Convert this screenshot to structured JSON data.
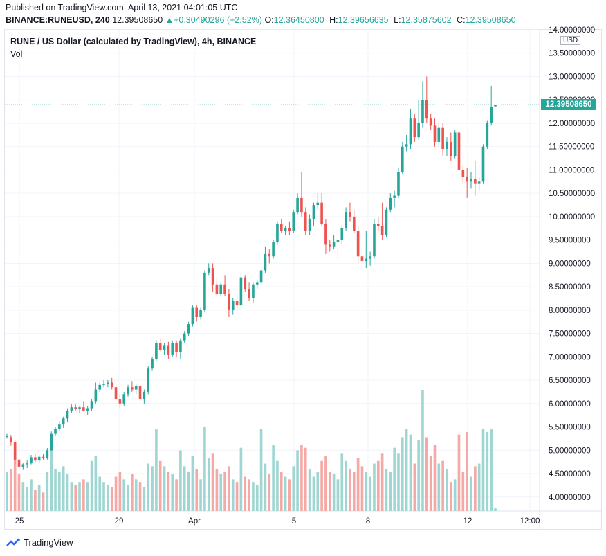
{
  "header": {
    "published": "Published on TradingView.com, April 13, 2021 04:01:05 UTC",
    "symbol": "BINANCE:RUNEUSD, 240",
    "last": "12.39508650",
    "change": "▲+0.30490296 (+2.52%)",
    "o_label": "O:",
    "o_value": "12.36450800",
    "h_label": "H:",
    "h_value": "12.39656635",
    "l_label": "L:",
    "l_value": "12.35875602",
    "c_label": "C:",
    "c_value": "12.39508650"
  },
  "legend": {
    "title": "RUNE / US Dollar (calculated by TradingView), 4h, BINANCE",
    "vol_label": "Vol"
  },
  "axis": {
    "currency": "USD",
    "last_price_tag": "12.39508650"
  },
  "footer": {
    "brand": "TradingView"
  },
  "colors": {
    "up": "#26a69a",
    "down": "#ef5350",
    "up_vol": "#9fd6d1",
    "down_vol": "#f5a9a6",
    "grid": "#f0f3fa"
  },
  "chart_data": {
    "type": "candlestick",
    "ylim": [
      3.7,
      14.0
    ],
    "y_ticks": [
      "4.00000000",
      "4.50000000",
      "5.00000000",
      "5.50000000",
      "6.00000000",
      "6.50000000",
      "7.00000000",
      "7.50000000",
      "8.00000000",
      "8.50000000",
      "9.00000000",
      "9.50000000",
      "10.00000000",
      "10.50000000",
      "11.00000000",
      "11.50000000",
      "12.00000000",
      "12.50000000",
      "13.00000000",
      "13.50000000",
      "14.00000000"
    ],
    "x_labels": [
      "25",
      "29",
      "Apr",
      "5",
      "8",
      "12",
      "12:00"
    ],
    "last_price": 12.3950865,
    "candles": [
      {
        "o": 5.3,
        "h": 5.35,
        "l": 5.25,
        "c": 5.3,
        "v": 0.3
      },
      {
        "o": 5.28,
        "h": 5.33,
        "l": 5.1,
        "c": 5.18,
        "v": 0.32
      },
      {
        "o": 5.18,
        "h": 5.22,
        "l": 4.7,
        "c": 4.8,
        "v": 0.4
      },
      {
        "o": 4.8,
        "h": 4.9,
        "l": 4.6,
        "c": 4.65,
        "v": 0.28
      },
      {
        "o": 4.65,
        "h": 4.72,
        "l": 4.58,
        "c": 4.7,
        "v": 0.22
      },
      {
        "o": 4.7,
        "h": 4.78,
        "l": 4.62,
        "c": 4.72,
        "v": 0.18
      },
      {
        "o": 4.72,
        "h": 4.9,
        "l": 4.7,
        "c": 4.85,
        "v": 0.24
      },
      {
        "o": 4.85,
        "h": 4.92,
        "l": 4.75,
        "c": 4.78,
        "v": 0.16
      },
      {
        "o": 4.78,
        "h": 4.9,
        "l": 4.74,
        "c": 4.86,
        "v": 0.2
      },
      {
        "o": 4.86,
        "h": 4.92,
        "l": 4.8,
        "c": 4.84,
        "v": 0.14
      },
      {
        "o": 4.84,
        "h": 5.05,
        "l": 4.8,
        "c": 5.0,
        "v": 0.3
      },
      {
        "o": 5.0,
        "h": 5.4,
        "l": 4.98,
        "c": 5.35,
        "v": 0.5
      },
      {
        "o": 5.35,
        "h": 5.5,
        "l": 5.3,
        "c": 5.45,
        "v": 0.32
      },
      {
        "o": 5.45,
        "h": 5.62,
        "l": 5.4,
        "c": 5.55,
        "v": 0.3
      },
      {
        "o": 5.55,
        "h": 5.72,
        "l": 5.48,
        "c": 5.68,
        "v": 0.34
      },
      {
        "o": 5.68,
        "h": 5.9,
        "l": 5.6,
        "c": 5.85,
        "v": 0.28
      },
      {
        "o": 5.85,
        "h": 5.98,
        "l": 5.8,
        "c": 5.92,
        "v": 0.22
      },
      {
        "o": 5.92,
        "h": 5.98,
        "l": 5.85,
        "c": 5.88,
        "v": 0.2
      },
      {
        "o": 5.88,
        "h": 5.95,
        "l": 5.8,
        "c": 5.92,
        "v": 0.22
      },
      {
        "o": 5.92,
        "h": 6.05,
        "l": 5.85,
        "c": 5.85,
        "v": 0.24
      },
      {
        "o": 5.85,
        "h": 5.95,
        "l": 5.75,
        "c": 5.9,
        "v": 0.22
      },
      {
        "o": 5.9,
        "h": 6.1,
        "l": 5.85,
        "c": 6.05,
        "v": 0.38
      },
      {
        "o": 6.05,
        "h": 6.45,
        "l": 6.0,
        "c": 6.3,
        "v": 0.42
      },
      {
        "o": 6.3,
        "h": 6.45,
        "l": 6.25,
        "c": 6.4,
        "v": 0.26
      },
      {
        "o": 6.4,
        "h": 6.5,
        "l": 6.35,
        "c": 6.42,
        "v": 0.22
      },
      {
        "o": 6.42,
        "h": 6.5,
        "l": 6.35,
        "c": 6.45,
        "v": 0.2
      },
      {
        "o": 6.45,
        "h": 6.55,
        "l": 6.3,
        "c": 6.35,
        "v": 0.18
      },
      {
        "o": 6.35,
        "h": 6.45,
        "l": 6.05,
        "c": 6.1,
        "v": 0.26
      },
      {
        "o": 6.1,
        "h": 6.2,
        "l": 5.9,
        "c": 6.0,
        "v": 0.3
      },
      {
        "o": 6.0,
        "h": 6.25,
        "l": 5.95,
        "c": 6.2,
        "v": 0.24
      },
      {
        "o": 6.2,
        "h": 6.4,
        "l": 6.15,
        "c": 6.35,
        "v": 0.2
      },
      {
        "o": 6.35,
        "h": 6.48,
        "l": 6.25,
        "c": 6.3,
        "v": 0.28
      },
      {
        "o": 6.3,
        "h": 6.42,
        "l": 6.2,
        "c": 6.38,
        "v": 0.24
      },
      {
        "o": 6.38,
        "h": 6.45,
        "l": 6.05,
        "c": 6.1,
        "v": 0.22
      },
      {
        "o": 6.1,
        "h": 6.3,
        "l": 6.0,
        "c": 6.25,
        "v": 0.18
      },
      {
        "o": 6.25,
        "h": 6.8,
        "l": 6.2,
        "c": 6.75,
        "v": 0.36
      },
      {
        "o": 6.75,
        "h": 7.0,
        "l": 6.7,
        "c": 6.95,
        "v": 0.34
      },
      {
        "o": 6.95,
        "h": 7.35,
        "l": 6.9,
        "c": 7.3,
        "v": 0.62
      },
      {
        "o": 7.3,
        "h": 7.4,
        "l": 7.1,
        "c": 7.15,
        "v": 0.38
      },
      {
        "o": 7.15,
        "h": 7.3,
        "l": 7.05,
        "c": 7.25,
        "v": 0.34
      },
      {
        "o": 7.25,
        "h": 7.32,
        "l": 6.95,
        "c": 7.05,
        "v": 0.3
      },
      {
        "o": 7.05,
        "h": 7.35,
        "l": 7.0,
        "c": 7.3,
        "v": 0.28
      },
      {
        "o": 7.3,
        "h": 7.35,
        "l": 7.0,
        "c": 7.1,
        "v": 0.24
      },
      {
        "o": 7.1,
        "h": 7.4,
        "l": 6.95,
        "c": 7.35,
        "v": 0.46
      },
      {
        "o": 7.35,
        "h": 7.55,
        "l": 7.3,
        "c": 7.5,
        "v": 0.34
      },
      {
        "o": 7.5,
        "h": 7.75,
        "l": 7.45,
        "c": 7.7,
        "v": 0.3
      },
      {
        "o": 7.7,
        "h": 8.1,
        "l": 7.65,
        "c": 8.05,
        "v": 0.42
      },
      {
        "o": 8.05,
        "h": 8.1,
        "l": 7.75,
        "c": 7.85,
        "v": 0.32
      },
      {
        "o": 7.85,
        "h": 8.05,
        "l": 7.8,
        "c": 8.0,
        "v": 0.24
      },
      {
        "o": 8.0,
        "h": 8.85,
        "l": 7.95,
        "c": 8.8,
        "v": 0.64
      },
      {
        "o": 8.8,
        "h": 9.0,
        "l": 8.75,
        "c": 8.9,
        "v": 0.4
      },
      {
        "o": 8.9,
        "h": 9.0,
        "l": 8.4,
        "c": 8.55,
        "v": 0.44
      },
      {
        "o": 8.55,
        "h": 8.7,
        "l": 8.3,
        "c": 8.35,
        "v": 0.32
      },
      {
        "o": 8.35,
        "h": 8.6,
        "l": 8.3,
        "c": 8.55,
        "v": 0.28
      },
      {
        "o": 8.55,
        "h": 8.75,
        "l": 8.3,
        "c": 8.35,
        "v": 0.3
      },
      {
        "o": 8.35,
        "h": 8.45,
        "l": 7.85,
        "c": 8.0,
        "v": 0.34
      },
      {
        "o": 8.0,
        "h": 8.25,
        "l": 7.9,
        "c": 8.2,
        "v": 0.24
      },
      {
        "o": 8.2,
        "h": 8.35,
        "l": 8.0,
        "c": 8.1,
        "v": 0.22
      },
      {
        "o": 8.1,
        "h": 8.8,
        "l": 8.05,
        "c": 8.7,
        "v": 0.48
      },
      {
        "o": 8.7,
        "h": 8.75,
        "l": 8.4,
        "c": 8.45,
        "v": 0.26
      },
      {
        "o": 8.45,
        "h": 8.6,
        "l": 8.2,
        "c": 8.25,
        "v": 0.24
      },
      {
        "o": 8.25,
        "h": 8.6,
        "l": 8.15,
        "c": 8.55,
        "v": 0.22
      },
      {
        "o": 8.55,
        "h": 8.65,
        "l": 8.45,
        "c": 8.6,
        "v": 0.2
      },
      {
        "o": 8.6,
        "h": 8.9,
        "l": 8.55,
        "c": 8.85,
        "v": 0.62
      },
      {
        "o": 8.85,
        "h": 9.35,
        "l": 8.8,
        "c": 9.2,
        "v": 0.36
      },
      {
        "o": 9.2,
        "h": 9.3,
        "l": 9.0,
        "c": 9.15,
        "v": 0.28
      },
      {
        "o": 9.15,
        "h": 9.5,
        "l": 9.1,
        "c": 9.45,
        "v": 0.5
      },
      {
        "o": 9.45,
        "h": 9.9,
        "l": 9.4,
        "c": 9.85,
        "v": 0.38
      },
      {
        "o": 9.85,
        "h": 9.95,
        "l": 9.65,
        "c": 9.7,
        "v": 0.3
      },
      {
        "o": 9.7,
        "h": 9.8,
        "l": 9.6,
        "c": 9.75,
        "v": 0.26
      },
      {
        "o": 9.75,
        "h": 9.9,
        "l": 9.6,
        "c": 9.7,
        "v": 0.24
      },
      {
        "o": 9.7,
        "h": 10.15,
        "l": 9.65,
        "c": 10.1,
        "v": 0.34
      },
      {
        "o": 10.1,
        "h": 10.5,
        "l": 10.05,
        "c": 10.4,
        "v": 0.46
      },
      {
        "o": 10.4,
        "h": 10.95,
        "l": 10.0,
        "c": 10.1,
        "v": 0.5
      },
      {
        "o": 10.1,
        "h": 10.2,
        "l": 9.6,
        "c": 9.7,
        "v": 0.48
      },
      {
        "o": 9.7,
        "h": 10.05,
        "l": 9.6,
        "c": 9.95,
        "v": 0.32
      },
      {
        "o": 9.95,
        "h": 10.3,
        "l": 9.8,
        "c": 10.25,
        "v": 0.26
      },
      {
        "o": 10.25,
        "h": 10.5,
        "l": 10.15,
        "c": 10.3,
        "v": 0.3
      },
      {
        "o": 10.3,
        "h": 10.5,
        "l": 9.8,
        "c": 9.85,
        "v": 0.38
      },
      {
        "o": 9.85,
        "h": 9.95,
        "l": 9.2,
        "c": 9.4,
        "v": 0.42
      },
      {
        "o": 9.4,
        "h": 9.5,
        "l": 9.25,
        "c": 9.35,
        "v": 0.3
      },
      {
        "o": 9.35,
        "h": 9.6,
        "l": 9.3,
        "c": 9.45,
        "v": 0.28
      },
      {
        "o": 9.45,
        "h": 9.55,
        "l": 9.1,
        "c": 9.5,
        "v": 0.24
      },
      {
        "o": 9.5,
        "h": 9.8,
        "l": 9.4,
        "c": 9.75,
        "v": 0.44
      },
      {
        "o": 9.75,
        "h": 10.2,
        "l": 9.7,
        "c": 10.1,
        "v": 0.38
      },
      {
        "o": 10.1,
        "h": 10.3,
        "l": 9.9,
        "c": 10.0,
        "v": 0.32
      },
      {
        "o": 10.0,
        "h": 10.15,
        "l": 9.65,
        "c": 9.7,
        "v": 0.3
      },
      {
        "o": 9.7,
        "h": 9.8,
        "l": 9.0,
        "c": 9.15,
        "v": 0.4
      },
      {
        "o": 9.15,
        "h": 9.3,
        "l": 8.85,
        "c": 9.05,
        "v": 0.34
      },
      {
        "o": 9.05,
        "h": 9.7,
        "l": 8.9,
        "c": 9.1,
        "v": 0.3
      },
      {
        "o": 9.1,
        "h": 9.25,
        "l": 8.95,
        "c": 9.15,
        "v": 0.26
      },
      {
        "o": 9.15,
        "h": 9.95,
        "l": 9.1,
        "c": 9.85,
        "v": 0.36
      },
      {
        "o": 9.85,
        "h": 10.0,
        "l": 9.7,
        "c": 9.8,
        "v": 0.38
      },
      {
        "o": 9.8,
        "h": 10.3,
        "l": 9.5,
        "c": 9.6,
        "v": 0.44
      },
      {
        "o": 9.6,
        "h": 10.2,
        "l": 9.55,
        "c": 10.15,
        "v": 0.32
      },
      {
        "o": 10.15,
        "h": 10.5,
        "l": 10.1,
        "c": 10.4,
        "v": 0.3
      },
      {
        "o": 10.4,
        "h": 10.55,
        "l": 10.2,
        "c": 10.45,
        "v": 0.48
      },
      {
        "o": 10.45,
        "h": 11.05,
        "l": 10.4,
        "c": 10.95,
        "v": 0.44
      },
      {
        "o": 10.95,
        "h": 11.6,
        "l": 10.9,
        "c": 11.5,
        "v": 0.56
      },
      {
        "o": 11.5,
        "h": 11.75,
        "l": 11.4,
        "c": 11.55,
        "v": 0.62
      },
      {
        "o": 11.55,
        "h": 12.3,
        "l": 11.45,
        "c": 12.1,
        "v": 0.58
      },
      {
        "o": 12.1,
        "h": 12.2,
        "l": 11.6,
        "c": 11.7,
        "v": 0.36
      },
      {
        "o": 11.7,
        "h": 12.5,
        "l": 11.65,
        "c": 12.0,
        "v": 0.54
      },
      {
        "o": 12.0,
        "h": 12.9,
        "l": 11.9,
        "c": 12.5,
        "v": 0.92
      },
      {
        "o": 12.5,
        "h": 13.0,
        "l": 12.0,
        "c": 12.1,
        "v": 0.56
      },
      {
        "o": 12.1,
        "h": 12.2,
        "l": 11.85,
        "c": 11.95,
        "v": 0.42
      },
      {
        "o": 11.95,
        "h": 12.1,
        "l": 11.5,
        "c": 11.6,
        "v": 0.5
      },
      {
        "o": 11.6,
        "h": 12.0,
        "l": 11.5,
        "c": 11.9,
        "v": 0.36
      },
      {
        "o": 11.9,
        "h": 12.0,
        "l": 11.3,
        "c": 11.45,
        "v": 0.38
      },
      {
        "o": 11.45,
        "h": 11.7,
        "l": 11.3,
        "c": 11.6,
        "v": 0.32
      },
      {
        "o": 11.6,
        "h": 11.8,
        "l": 11.2,
        "c": 11.3,
        "v": 0.22
      },
      {
        "o": 11.3,
        "h": 11.85,
        "l": 11.25,
        "c": 11.8,
        "v": 0.24
      },
      {
        "o": 11.8,
        "h": 11.9,
        "l": 10.9,
        "c": 11.0,
        "v": 0.58
      },
      {
        "o": 11.0,
        "h": 11.1,
        "l": 10.7,
        "c": 10.85,
        "v": 0.3
      },
      {
        "o": 10.85,
        "h": 11.05,
        "l": 10.4,
        "c": 10.75,
        "v": 0.6
      },
      {
        "o": 10.75,
        "h": 10.95,
        "l": 10.6,
        "c": 10.8,
        "v": 0.26
      },
      {
        "o": 10.8,
        "h": 11.2,
        "l": 10.45,
        "c": 10.7,
        "v": 0.34
      },
      {
        "o": 10.7,
        "h": 10.85,
        "l": 10.55,
        "c": 10.75,
        "v": 0.36
      },
      {
        "o": 10.75,
        "h": 11.55,
        "l": 10.7,
        "c": 11.5,
        "v": 0.62
      },
      {
        "o": 11.5,
        "h": 12.05,
        "l": 11.45,
        "c": 12.0,
        "v": 0.6
      },
      {
        "o": 12.0,
        "h": 12.8,
        "l": 11.95,
        "c": 12.35,
        "v": 0.62
      },
      {
        "o": 12.36,
        "h": 12.4,
        "l": 12.36,
        "c": 12.4,
        "v": 0.02
      }
    ]
  }
}
